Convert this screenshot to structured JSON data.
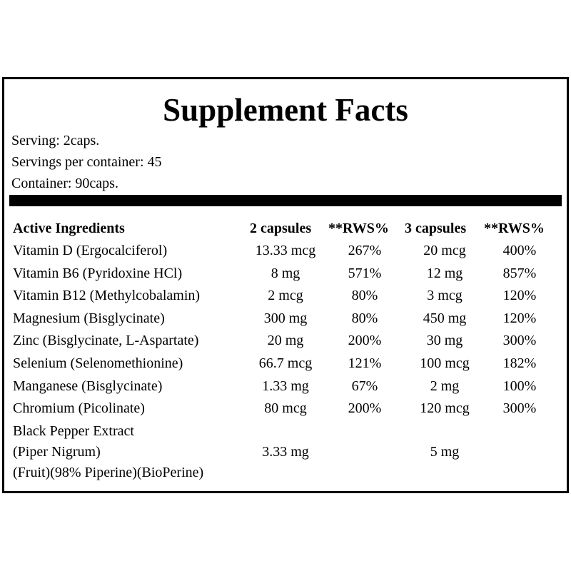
{
  "title": "Supplement Facts",
  "serving": [
    "Serving: 2caps.",
    "Servings per container: 45",
    "Container: 90caps."
  ],
  "table": {
    "header": [
      "Active Ingredients",
      "2 capsules",
      "**RWS%",
      "3 capsules",
      "**RWS%"
    ],
    "rows": [
      {
        "ingredient": [
          "Vitamin D (Ergocalciferol)"
        ],
        "dose2": "13.33 mcg",
        "rws2": "267%",
        "dose3": "20 mcg",
        "rws3": "400%"
      },
      {
        "ingredient": [
          "Vitamin B6 (Pyridoxine HCl)"
        ],
        "dose2": "8 mg",
        "rws2": "571%",
        "dose3": "12 mg",
        "rws3": "857%"
      },
      {
        "ingredient": [
          "Vitamin B12 (Methylcobalamin)"
        ],
        "dose2": "2 mcg",
        "rws2": "80%",
        "dose3": "3 mcg",
        "rws3": "120%"
      },
      {
        "ingredient": [
          "Magnesium (Bisglycinate)"
        ],
        "dose2": "300 mg",
        "rws2": "80%",
        "dose3": "450 mg",
        "rws3": "120%"
      },
      {
        "ingredient": [
          "Zinc (Bisglycinate, L-Aspartate)"
        ],
        "dose2": "20 mg",
        "rws2": "200%",
        "dose3": "30 mg",
        "rws3": "300%"
      },
      {
        "ingredient": [
          "Selenium (Selenomethionine)"
        ],
        "dose2": "66.7 mcg",
        "rws2": "121%",
        "dose3": "100 mcg",
        "rws3": "182%"
      },
      {
        "ingredient": [
          "Manganese (Bisglycinate)"
        ],
        "dose2": "1.33 mg",
        "rws2": "67%",
        "dose3": "2 mg",
        "rws3": "100%"
      },
      {
        "ingredient": [
          "Chromium (Picolinate)"
        ],
        "dose2": "80 mcg",
        "rws2": "200%",
        "dose3": "120 mcg",
        "rws3": "300%"
      },
      {
        "ingredient": [
          "Black Pepper Extract",
          "(Piper Nigrum)",
          "(Fruit)(98% Piperine)(BioPerine)"
        ],
        "dose2": "3.33 mg",
        "dose3": "5 mg"
      }
    ]
  }
}
